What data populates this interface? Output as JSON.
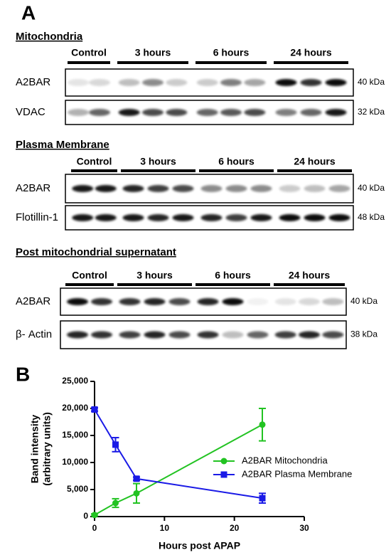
{
  "panel_a": {
    "label": "A",
    "sections": [
      {
        "title": "Mitochondria",
        "groups": [
          "Control",
          "3 hours",
          "6 hours",
          "24 hours"
        ],
        "rows": [
          {
            "label": "A2BAR",
            "kda": "40 kDa"
          },
          {
            "label": "VDAC",
            "kda": "32 kDa"
          }
        ]
      },
      {
        "title": "Plasma Membrane",
        "groups": [
          "Control",
          "3 hours",
          "6 hours",
          "24 hours"
        ],
        "rows": [
          {
            "label": "A2BAR",
            "kda": "40 kDa"
          },
          {
            "label": "Flotillin-1",
            "kda": "48 kDa"
          }
        ]
      },
      {
        "title": "Post mitochondrial supernatant",
        "groups": [
          "Control",
          "3 hours",
          "6 hours",
          "24 hours"
        ],
        "rows": [
          {
            "label": "A2BAR",
            "kda": "40 kDa"
          },
          {
            "label": "β- Actin",
            "kda": "38 kDa"
          }
        ]
      }
    ]
  },
  "chart_data": {
    "type": "line",
    "panel_label": "B",
    "xlabel": "Hours post APAP",
    "ylabel": [
      "Band intensity",
      "(arbitrary units)"
    ],
    "x": [
      0,
      3,
      6,
      24
    ],
    "series": [
      {
        "name": "A2BAR Mitochondria",
        "color": "#22c322",
        "marker": "circle",
        "values": [
          300,
          2500,
          4300,
          17000
        ],
        "errors": [
          200,
          800,
          1800,
          3000
        ]
      },
      {
        "name": "A2BAR Plasma Membrane",
        "color": "#1a1ae6",
        "marker": "square",
        "values": [
          19800,
          13300,
          7000,
          3400
        ],
        "errors": [
          300,
          1300,
          300,
          900
        ]
      }
    ],
    "xlim": [
      0,
      30
    ],
    "xticks": [
      0,
      10,
      20,
      30
    ],
    "ylim": [
      0,
      25000
    ],
    "yticks": [
      0,
      {
        "value": 5000,
        "label": "5,000"
      },
      {
        "value": 10000,
        "label": "10,000"
      },
      {
        "value": 15000,
        "label": "15,000"
      },
      {
        "value": 20000,
        "label": "20,000"
      },
      {
        "value": 25000,
        "label": "25,000"
      }
    ],
    "legend": "right"
  }
}
